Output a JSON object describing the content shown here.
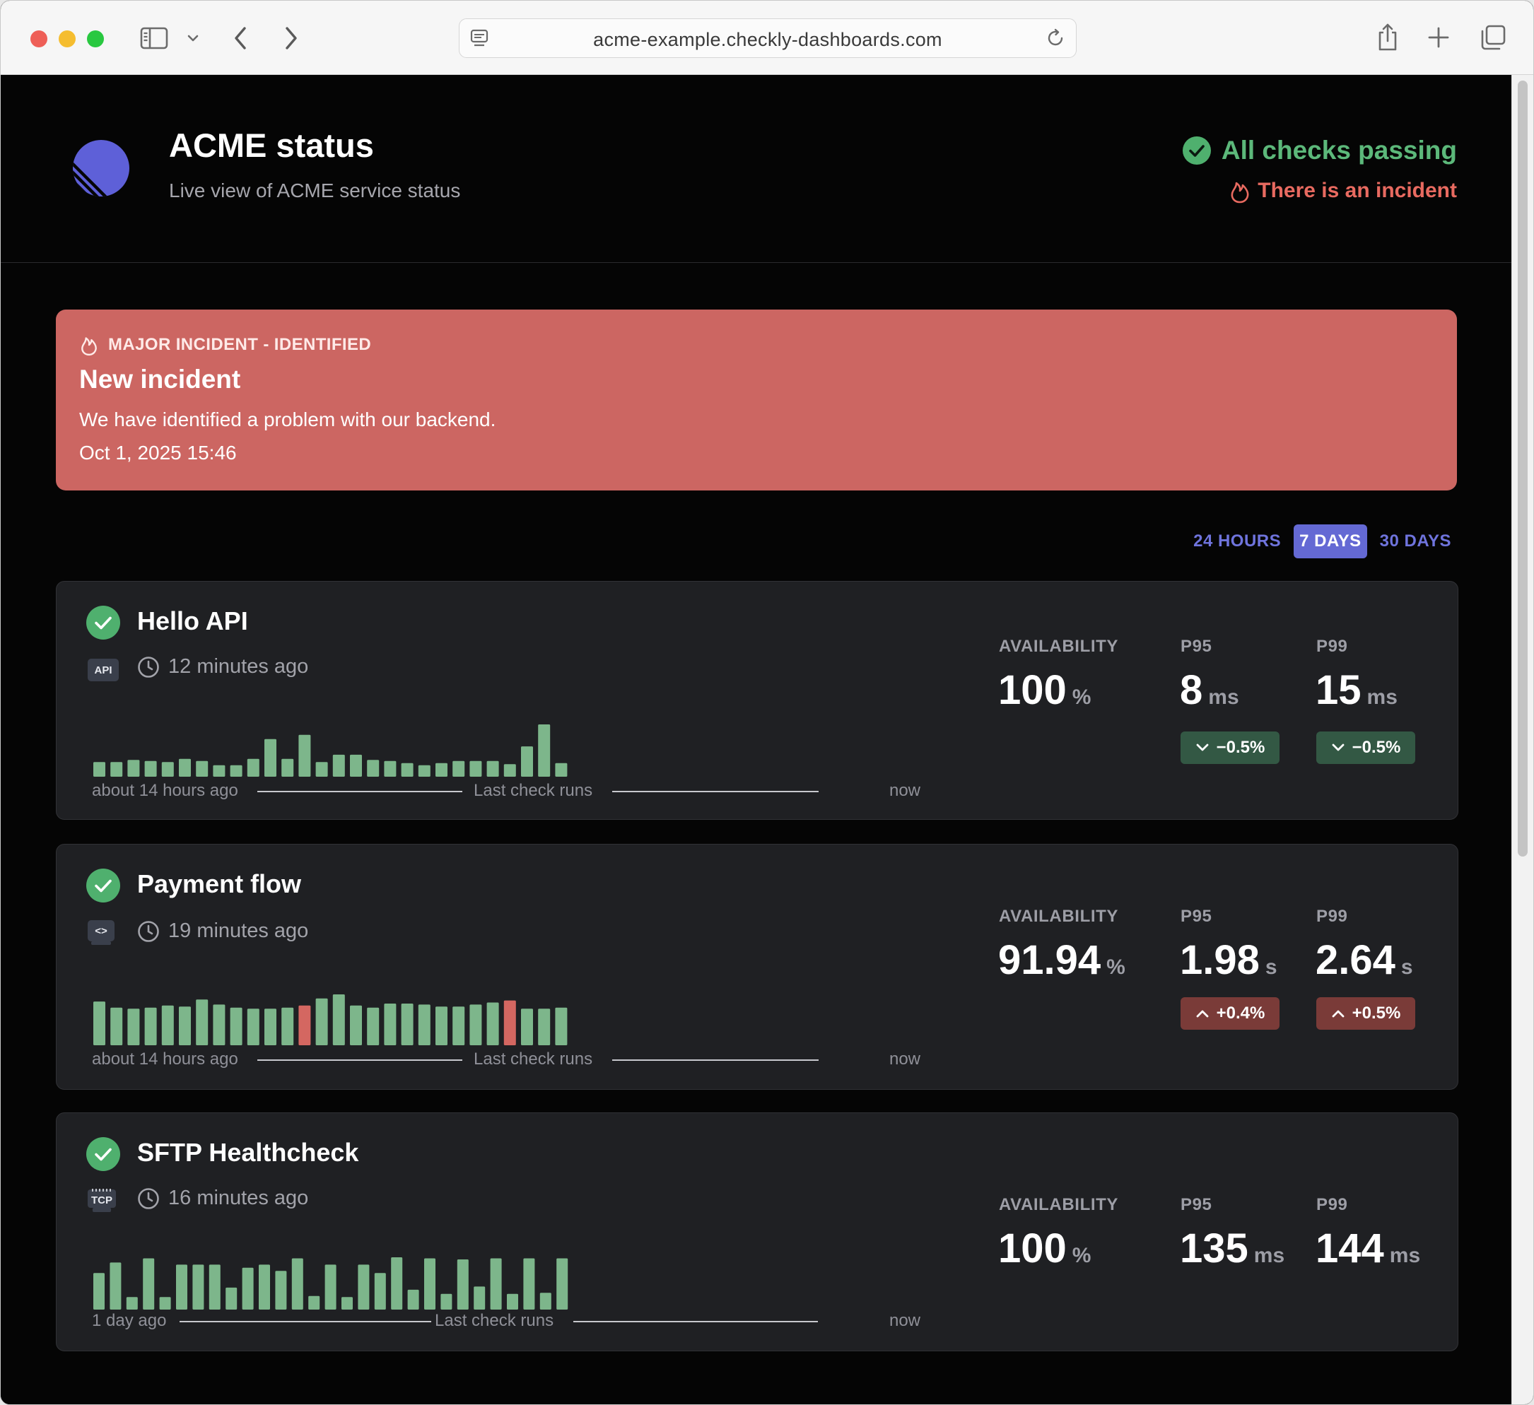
{
  "browser": {
    "url": "acme-example.checkly-dashboards.com"
  },
  "header": {
    "title": "ACME status",
    "subtitle": "Live view of ACME service status",
    "status_ok": "All checks passing",
    "status_incident": "There is an incident"
  },
  "incident": {
    "badge": "MAJOR INCIDENT - IDENTIFIED",
    "title": "New incident",
    "description": "We have identified a problem with our backend.",
    "time": "Oct 1, 2025 15:46"
  },
  "range": {
    "options": [
      "24 HOURS",
      "7 DAYS",
      "30 DAYS"
    ],
    "selected": "7 DAYS"
  },
  "labels": {
    "availability": "AVAILABILITY",
    "p95": "P95",
    "p99": "P99",
    "last_check_runs": "Last check runs",
    "now": "now"
  },
  "checks": [
    {
      "name": "Hello API",
      "type_badge": "API",
      "last_run": "12 minutes ago",
      "timeline_start": "about 14 hours ago",
      "availability": "100",
      "availability_unit": "%",
      "p95": "8",
      "p95_unit": "ms",
      "p95_delta": "−0.5%",
      "p95_trend": "down",
      "p99": "15",
      "p99_unit": "ms",
      "p99_delta": "−0.5%",
      "p99_trend": "down",
      "runs": [
        0.28,
        0.28,
        0.32,
        0.3,
        0.28,
        0.34,
        0.3,
        0.22,
        0.22,
        0.34,
        0.72,
        0.34,
        0.8,
        0.28,
        0.42,
        0.42,
        0.32,
        0.3,
        0.26,
        0.22,
        0.26,
        0.3,
        0.3,
        0.3,
        0.24,
        0.58,
        1.0,
        0.26
      ],
      "run_status": [
        "ok",
        "ok",
        "ok",
        "ok",
        "ok",
        "ok",
        "ok",
        "ok",
        "ok",
        "ok",
        "ok",
        "ok",
        "ok",
        "ok",
        "ok",
        "ok",
        "ok",
        "ok",
        "ok",
        "ok",
        "ok",
        "ok",
        "ok",
        "ok",
        "ok",
        "ok",
        "ok",
        "ok"
      ]
    },
    {
      "name": "Payment flow",
      "type_badge": "<>",
      "last_run": "19 minutes ago",
      "timeline_start": "about 14 hours ago",
      "availability": "91.94",
      "availability_unit": "%",
      "p95": "1.98",
      "p95_unit": "s",
      "p95_delta": "+0.4%",
      "p95_trend": "up",
      "p99": "2.64",
      "p99_unit": "s",
      "p99_delta": "+0.5%",
      "p99_trend": "up",
      "runs": [
        0.86,
        0.74,
        0.72,
        0.74,
        0.78,
        0.76,
        0.9,
        0.8,
        0.74,
        0.72,
        0.72,
        0.74,
        0.78,
        0.92,
        1.0,
        0.78,
        0.74,
        0.82,
        0.82,
        0.8,
        0.76,
        0.76,
        0.8,
        0.84,
        0.88,
        0.72,
        0.72,
        0.74
      ],
      "run_status": [
        "ok",
        "ok",
        "ok",
        "ok",
        "ok",
        "ok",
        "ok",
        "ok",
        "ok",
        "ok",
        "ok",
        "ok",
        "fail",
        "ok",
        "ok",
        "ok",
        "ok",
        "ok",
        "ok",
        "ok",
        "ok",
        "ok",
        "ok",
        "ok",
        "fail",
        "ok",
        "ok",
        "ok"
      ]
    },
    {
      "name": "SFTP Healthcheck",
      "type_badge": "TCP",
      "last_run": "16 minutes ago",
      "timeline_start": "1 day ago",
      "availability": "100",
      "availability_unit": "%",
      "p95": "135",
      "p95_unit": "ms",
      "p99": "144",
      "p99_unit": "ms",
      "runs": [
        0.7,
        0.9,
        0.24,
        0.98,
        0.24,
        0.86,
        0.86,
        0.86,
        0.42,
        0.8,
        0.86,
        0.74,
        0.98,
        0.26,
        0.86,
        0.24,
        0.86,
        0.7,
        1.0,
        0.38,
        0.98,
        0.3,
        0.96,
        0.44,
        0.98,
        0.3,
        0.98,
        0.32,
        0.98
      ],
      "run_status": [
        "ok",
        "ok",
        "ok",
        "ok",
        "ok",
        "ok",
        "ok",
        "ok",
        "ok",
        "ok",
        "ok",
        "ok",
        "ok",
        "ok",
        "ok",
        "ok",
        "ok",
        "ok",
        "ok",
        "ok",
        "ok",
        "ok",
        "ok",
        "ok",
        "ok",
        "ok",
        "ok",
        "ok",
        "ok"
      ]
    }
  ],
  "colors": {
    "ok_bar": "#7db68b",
    "fail_bar": "#d46761",
    "accent": "#6469d4",
    "incident_bg": "#cc6662",
    "success": "#5cb87a"
  }
}
